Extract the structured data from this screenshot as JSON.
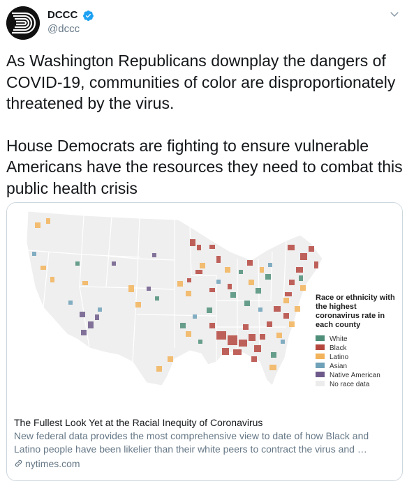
{
  "account": {
    "display_name": "DCCC",
    "handle": "@dccc",
    "verified": true
  },
  "tweet": {
    "paragraph1": "As Washington Republicans downplay the dangers of COVID-19, communities of color are disproportionately threatened by the virus.",
    "paragraph2": "House Democrats are fighting to ensure vulnerable Americans have the resources they need to combat this public health crisis"
  },
  "card": {
    "title": "The Fullest Look Yet at the Racial Inequity of Coronavirus",
    "description": "New federal data provides the most comprehensive view to date of how Black and Latino people have been likelier than their white peers to contract the virus and …",
    "domain": "nytimes.com"
  },
  "map": {
    "legend_title": "Race or ethnicity with the highest coronavirus rate in each county",
    "legend_items": [
      {
        "label": "White",
        "color": "#4f8f79"
      },
      {
        "label": "Black",
        "color": "#b5473f"
      },
      {
        "label": "Latino",
        "color": "#f2b35b"
      },
      {
        "label": "Asian",
        "color": "#6fa1b8"
      },
      {
        "label": "Native American",
        "color": "#6d5a8a"
      },
      {
        "label": "No race data",
        "color": "#ececec"
      }
    ]
  },
  "colors": {
    "verified_blue": "#1da1f2",
    "text": "#14171a",
    "secondary": "#657786",
    "border": "#ccd6dd"
  }
}
